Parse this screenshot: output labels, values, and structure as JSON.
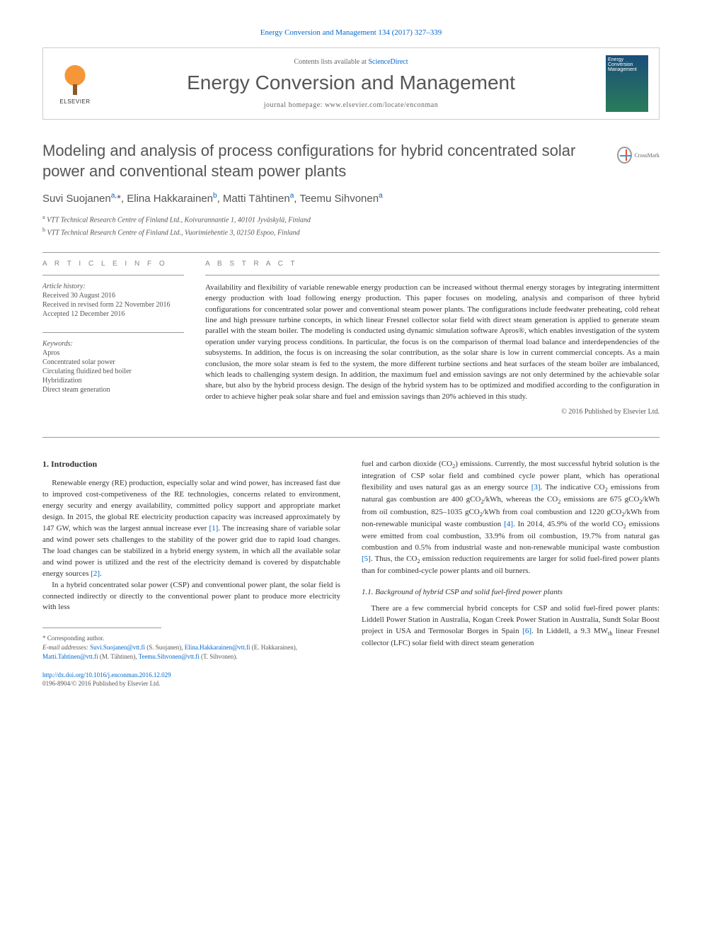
{
  "citation": "Energy Conversion and Management 134 (2017) 327–339",
  "header": {
    "contents_prefix": "Contents lists available at ",
    "contents_link": "ScienceDirect",
    "journal_name": "Energy Conversion and Management",
    "homepage_prefix": "journal homepage: ",
    "homepage_url": "www.elsevier.com/locate/enconman",
    "publisher": "ELSEVIER",
    "cover_text": "Energy Conversion Management"
  },
  "title": "Modeling and analysis of process configurations for hybrid concentrated solar power and conventional steam power plants",
  "crossmark_label": "CrossMark",
  "authors_html": "Suvi Suojanen<sup>a,</sup>*, Elina Hakkarainen<sup>b</sup>, Matti Tähtinen<sup>a</sup>, Teemu Sihvonen<sup>a</sup>",
  "affiliations": [
    {
      "sup": "a",
      "text": "VTT Technical Research Centre of Finland Ltd., Koivurannantie 1, 40101 Jyväskylä, Finland"
    },
    {
      "sup": "b",
      "text": "VTT Technical Research Centre of Finland Ltd., Vuorimiehentie 3, 02150 Espoo, Finland"
    }
  ],
  "info": {
    "heading": "A R T I C L E   I N F O",
    "history_label": "Article history:",
    "history": [
      "Received 30 August 2016",
      "Received in revised form 22 November 2016",
      "Accepted 12 December 2016"
    ],
    "keywords_label": "Keywords:",
    "keywords": [
      "Apros",
      "Concentrated solar power",
      "Circulating fluidized bed boiler",
      "Hybridization",
      "Direct steam generation"
    ]
  },
  "abstract": {
    "heading": "A B S T R A C T",
    "text": "Availability and flexibility of variable renewable energy production can be increased without thermal energy storages by integrating intermittent energy production with load following energy production. This paper focuses on modeling, analysis and comparison of three hybrid configurations for concentrated solar power and conventional steam power plants. The configurations include feedwater preheating, cold reheat line and high pressure turbine concepts, in which linear Fresnel collector solar field with direct steam generation is applied to generate steam parallel with the steam boiler. The modeling is conducted using dynamic simulation software Apros®, which enables investigation of the system operation under varying process conditions. In particular, the focus is on the comparison of thermal load balance and interdependencies of the subsystems. In addition, the focus is on increasing the solar contribution, as the solar share is low in current commercial concepts. As a main conclusion, the more solar steam is fed to the system, the more different turbine sections and heat surfaces of the steam boiler are imbalanced, which leads to challenging system design. In addition, the maximum fuel and emission savings are not only determined by the achievable solar share, but also by the hybrid process design. The design of the hybrid system has to be optimized and modified according to the configuration in order to achieve higher peak solar share and fuel and emission savings than 20% achieved in this study.",
    "copyright": "© 2016 Published by Elsevier Ltd."
  },
  "body": {
    "section1_heading": "1. Introduction",
    "col1_p1": "Renewable energy (RE) production, especially solar and wind power, has increased fast due to improved cost-competiveness of the RE technologies, concerns related to environment, energy security and energy availability, committed policy support and appropriate market design. In 2015, the global RE electricity production capacity was increased approximately by 147 GW, which was the largest annual increase ever [1]. The increasing share of variable solar and wind power sets challenges to the stability of the power grid due to rapid load changes. The load changes can be stabilized in a hybrid energy system, in which all the available solar and wind power is utilized and the rest of the electricity demand is covered by dispatchable energy sources [2].",
    "col1_p2": "In a hybrid concentrated solar power (CSP) and conventional power plant, the solar field is connected indirectly or directly to the conventional power plant to produce more electricity with less",
    "col2_p1": "fuel and carbon dioxide (CO₂) emissions. Currently, the most successful hybrid solution is the integration of CSP solar field and combined cycle power plant, which has operational flexibility and uses natural gas as an energy source [3]. The indicative CO₂ emissions from natural gas combustion are 400 gCO₂/kWh, whereas the CO₂ emissions are 675 gCO₂/kWh from oil combustion, 825–1035 gCO₂/kWh from coal combustion and 1220 gCO₂/kWh from non-renewable municipal waste combustion [4]. In 2014, 45.9% of the world CO₂ emissions were emitted from coal combustion, 33.9% from oil combustion, 19.7% from natural gas combustion and 0.5% from industrial waste and non-renewable municipal waste combustion [5]. Thus, the CO₂ emission reduction requirements are larger for solid fuel-fired power plants than for combined-cycle power plants and oil burners.",
    "subsection_heading": "1.1. Background of hybrid CSP and solid fuel-fired power plants",
    "col2_p2": "There are a few commercial hybrid concepts for CSP and solid fuel-fired power plants: Liddell Power Station in Australia, Kogan Creek Power Station in Australia, Sundt Solar Boost project in USA and Termosolar Borges in Spain [6]. In Liddell, a 9.3 MWth linear Fresnel collector (LFC) solar field with direct steam generation"
  },
  "footnotes": {
    "corr_label": "* Corresponding author.",
    "email_label": "E-mail addresses:",
    "emails": [
      {
        "addr": "Suvi.Suojanen@vtt.fi",
        "who": "(S. Suojanen)"
      },
      {
        "addr": "Elina.Hakkarainen@vtt.fi",
        "who": "(E. Hakkarainen)"
      },
      {
        "addr": "Matti.Tahtinen@vtt.fi",
        "who": "(M. Tähtinen)"
      },
      {
        "addr": "Teemu.Sihvonen@vtt.fi",
        "who": "(T. Sihvonen)"
      }
    ]
  },
  "doi": {
    "url": "http://dx.doi.org/10.1016/j.enconman.2016.12.029",
    "issn_line": "0196-8904/© 2016 Published by Elsevier Ltd."
  },
  "refs": {
    "r1": "[1]",
    "r2": "[2]",
    "r3": "[3]",
    "r4": "[4]",
    "r5": "[5]",
    "r6": "[6]"
  },
  "style": {
    "link_color": "#0066cc",
    "text_color": "#333333",
    "muted_color": "#555555",
    "border_color": "#999999",
    "body_font_size": 11,
    "title_font_size": 22,
    "journal_name_font_size": 28
  }
}
